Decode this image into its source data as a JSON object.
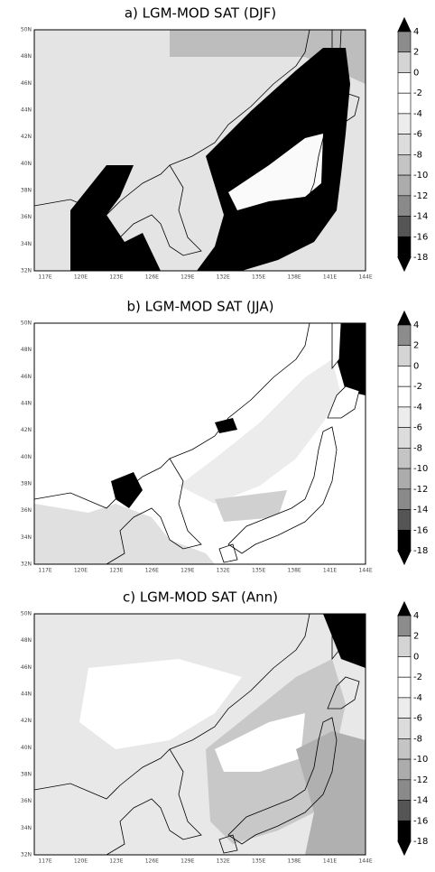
{
  "panels": [
    {
      "title": "a) LGM-MOD SAT (DJF)"
    },
    {
      "title": "b) LGM-MOD SAT (JJA)"
    },
    {
      "title": "c) LGM-MOD SAT (Ann)"
    }
  ],
  "lat_labels": [
    "50N",
    "48N",
    "46N",
    "44N",
    "42N",
    "40N",
    "38N",
    "36N",
    "34N",
    "32N"
  ],
  "lon_labels": [
    "117E",
    "120E",
    "123E",
    "126E",
    "129E",
    "132E",
    "135E",
    "138E",
    "141E",
    "144E"
  ],
  "colorbar": {
    "levels": [
      4,
      2,
      0,
      -2,
      -4,
      -6,
      -8,
      -10,
      -12,
      -14,
      -16,
      -18
    ],
    "colors": [
      "#000000",
      "#8c8c8c",
      "#d4d4d4",
      "#ffffff",
      "#ffffff",
      "#ececec",
      "#dcdcdc",
      "#c4c4c4",
      "#acacac",
      "#8a8a8a",
      "#555555",
      "#000000",
      "#000000"
    ]
  }
}
